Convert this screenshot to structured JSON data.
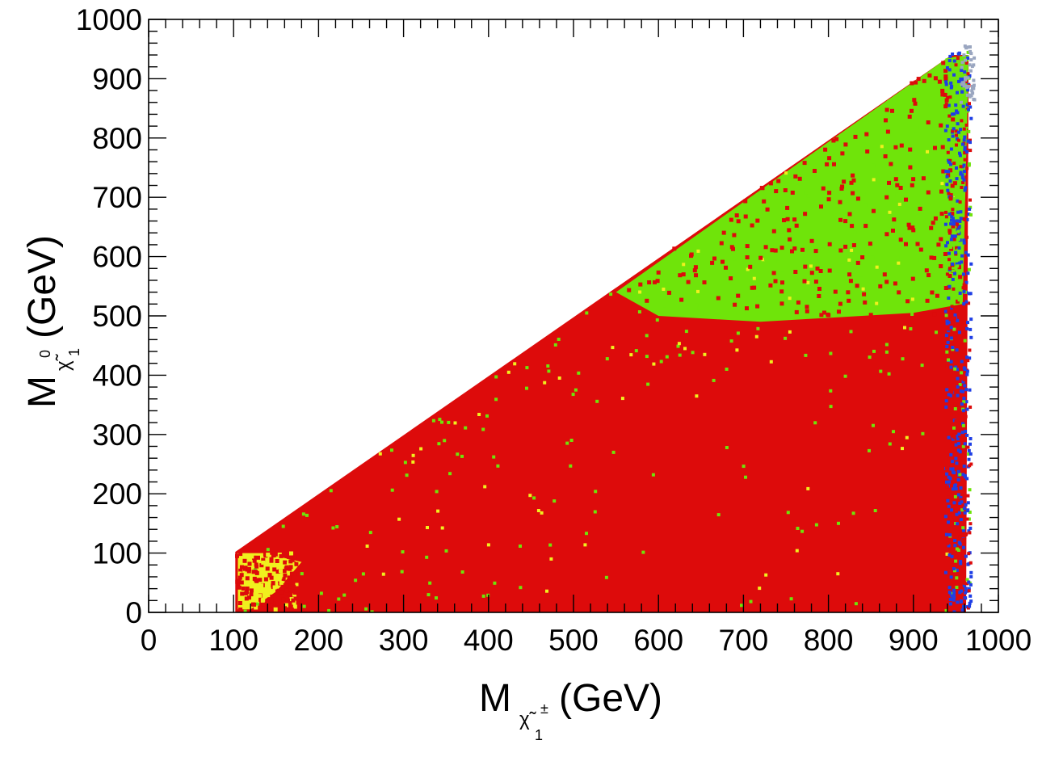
{
  "chart_data": {
    "type": "scatter",
    "title": "",
    "xlabel": {
      "main": "M",
      "sub": "χ̃",
      "sub_sup": "±",
      "sub_sub": "1",
      "unit": "(GeV)"
    },
    "ylabel": {
      "main": "M",
      "sub": "χ̃",
      "sub_sup": "0",
      "sub_sub": "1",
      "unit": "(GeV)"
    },
    "xlim": [
      0,
      1000
    ],
    "ylim": [
      0,
      1000
    ],
    "x_ticks": [
      "0",
      "100",
      "200",
      "300",
      "400",
      "500",
      "600",
      "700",
      "800",
      "900",
      "1000"
    ],
    "y_ticks": [
      "0",
      "100",
      "200",
      "300",
      "400",
      "500",
      "600",
      "700",
      "800",
      "900",
      "1000"
    ],
    "grid": false,
    "legend": "none",
    "colors": {
      "red": "#dd0b0b",
      "green": "#6fe40a",
      "yellow": "#f0f01e",
      "blue": "#1f3fe5",
      "grey": "#9aa6c0"
    },
    "regions": [
      {
        "color": "red",
        "shape": "polygon",
        "vertices": [
          [
            102,
            0
          ],
          [
            102,
            102
          ],
          [
            945,
            940
          ],
          [
            965,
            940
          ],
          [
            962,
            0
          ]
        ]
      },
      {
        "color": "green",
        "shape": "polygon",
        "vertices": [
          [
            550,
            540
          ],
          [
            940,
            935
          ],
          [
            965,
            940
          ],
          [
            958,
            520
          ],
          [
            900,
            505
          ],
          [
            720,
            490
          ],
          [
            600,
            500
          ]
        ]
      },
      {
        "color": "yellow",
        "shape": "polygon",
        "vertices": [
          [
            105,
            5
          ],
          [
            105,
            100
          ],
          [
            135,
            100
          ],
          [
            180,
            85
          ],
          [
            150,
            35
          ],
          [
            120,
            5
          ]
        ]
      },
      {
        "color": "blue",
        "shape": "band",
        "x_range": [
          938,
          968
        ],
        "y_range": [
          0,
          945
        ]
      },
      {
        "color": "grey",
        "shape": "band",
        "x_range": [
          955,
          972
        ],
        "y_range": [
          870,
          955
        ]
      }
    ]
  }
}
